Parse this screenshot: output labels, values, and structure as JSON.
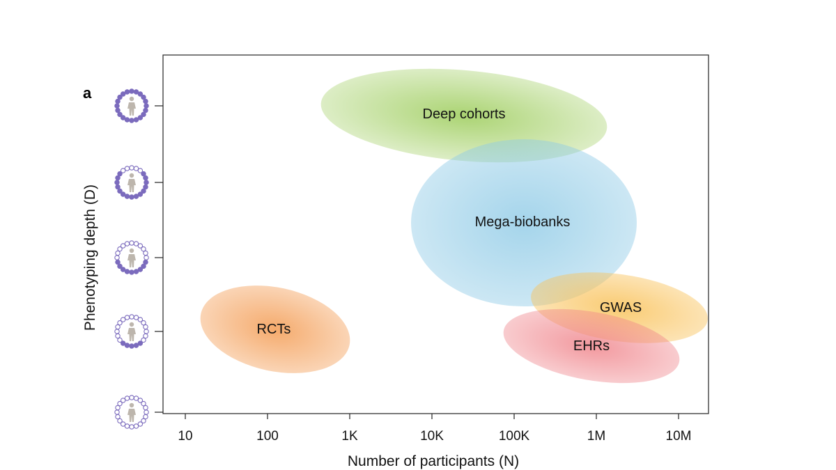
{
  "panel_label": "a",
  "x_axis": {
    "title": "Number of participants (N)",
    "scale": "log",
    "tick_labels": [
      "10",
      "100",
      "1K",
      "10K",
      "100K",
      "1M",
      "10M"
    ],
    "tick_values": [
      10,
      100,
      1000,
      10000,
      100000,
      1000000,
      10000000
    ]
  },
  "y_axis": {
    "title": "Phenotyping depth (D)",
    "tick_icon": "person-with-circle-of-dots-icon",
    "levels": [
      {
        "level": 4,
        "filled_dots": 20
      },
      {
        "level": 3,
        "filled_dots": 15
      },
      {
        "level": 2,
        "filled_dots": 10
      },
      {
        "level": 1,
        "filled_dots": 5
      },
      {
        "level": 0,
        "filled_dots": 0
      }
    ]
  },
  "regions": [
    {
      "id": "deep-cohorts",
      "label": "Deep cohorts",
      "color": "#9ccc5a"
    },
    {
      "id": "mega-biobanks",
      "label": "Mega-biobanks",
      "color": "#8ecae6"
    },
    {
      "id": "gwas",
      "label": "GWAS",
      "color": "#f9c25a"
    },
    {
      "id": "ehrs",
      "label": "EHRs",
      "color": "#ef7f86"
    },
    {
      "id": "rcts",
      "label": "RCTs",
      "color": "#f4a15c"
    }
  ],
  "colors": {
    "dot": "#7b6bbd",
    "figure": "#bdb6ad",
    "axis": "#222222"
  }
}
